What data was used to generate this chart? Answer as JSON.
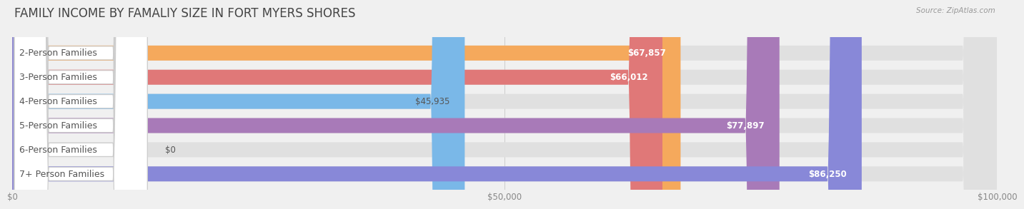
{
  "title": "FAMILY INCOME BY FAMALIY SIZE IN FORT MYERS SHORES",
  "source": "Source: ZipAtlas.com",
  "categories": [
    "2-Person Families",
    "3-Person Families",
    "4-Person Families",
    "5-Person Families",
    "6-Person Families",
    "7+ Person Families"
  ],
  "values": [
    67857,
    66012,
    45935,
    77897,
    0,
    86250
  ],
  "bar_colors": [
    "#f5a95c",
    "#e07878",
    "#7ab8e8",
    "#a87ab8",
    "#5ecfbe",
    "#8888d8"
  ],
  "label_colors": [
    "#ffffff",
    "#ffffff",
    "#555555",
    "#ffffff",
    "#555555",
    "#ffffff"
  ],
  "xlim": [
    0,
    100000
  ],
  "xticks": [
    0,
    50000,
    100000
  ],
  "xtick_labels": [
    "$0",
    "$50,000",
    "$100,000"
  ],
  "bar_height": 0.62,
  "background_color": "#f0f0f0",
  "bar_bg_color": "#e0e0e0",
  "title_fontsize": 12,
  "label_fontsize": 9,
  "value_fontsize": 8.5
}
